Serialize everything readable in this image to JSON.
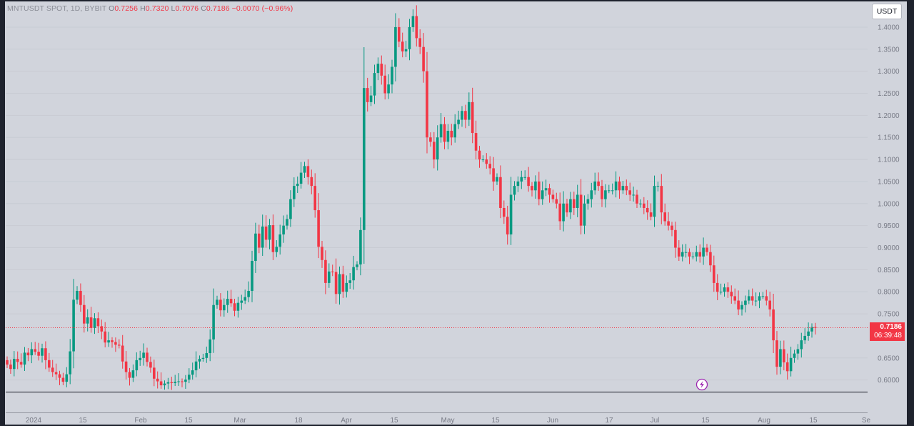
{
  "legend": {
    "symbol": "MNTUSDT SPOT, 1D, BYBIT",
    "open_label": "O",
    "open": "0.7256",
    "high_label": "H",
    "high": "0.7320",
    "low_label": "L",
    "low": "0.7076",
    "close_label": "C",
    "close": "0.7186",
    "change": "−0.0070 (−0.96%)"
  },
  "currency_button": "USDT",
  "price_tag": {
    "price": "0.7186",
    "countdown": "06:39:48"
  },
  "colors": {
    "up": "#089981",
    "down": "#f23645",
    "background": "#d1d4dc",
    "frame": "#1e222d",
    "axis_text": "#787b86"
  },
  "flash_icon": "lightning-icon",
  "chart_data": {
    "type": "candlestick",
    "title": "",
    "xlabel": "",
    "ylabel": "",
    "ylim": [
      0.58,
      1.455
    ],
    "y_ticks": [
      "1.4000",
      "1.3500",
      "1.3000",
      "1.2500",
      "1.2000",
      "1.1500",
      "1.1000",
      "1.0500",
      "1.0000",
      "0.9500",
      "0.9000",
      "0.8500",
      "0.8000",
      "0.7500",
      "0.6500",
      "0.6000"
    ],
    "x_ticks": [
      "2024",
      "15",
      "Feb",
      "15",
      "Mar",
      "18",
      "Apr",
      "15",
      "May",
      "15",
      "Jun",
      "17",
      "Jul",
      "15",
      "Aug",
      "15",
      "Se"
    ],
    "last_price": 0.7186,
    "closes": [
      0.635,
      0.625,
      0.648,
      0.641,
      0.635,
      0.662,
      0.656,
      0.67,
      0.664,
      0.655,
      0.672,
      0.645,
      0.628,
      0.618,
      0.613,
      0.605,
      0.596,
      0.613,
      0.665,
      0.782,
      0.802,
      0.77,
      0.728,
      0.742,
      0.718,
      0.74,
      0.722,
      0.71,
      0.685,
      0.69,
      0.686,
      0.68,
      0.678,
      0.642,
      0.618,
      0.605,
      0.622,
      0.645,
      0.65,
      0.662,
      0.641,
      0.628,
      0.603,
      0.597,
      0.588,
      0.592,
      0.595,
      0.593,
      0.596,
      0.597,
      0.596,
      0.601,
      0.612,
      0.622,
      0.642,
      0.648,
      0.65,
      0.661,
      0.692,
      0.77,
      0.782,
      0.758,
      0.77,
      0.784,
      0.774,
      0.757,
      0.775,
      0.78,
      0.788,
      0.802,
      0.87,
      0.932,
      0.9,
      0.948,
      0.918,
      0.951,
      0.89,
      0.902,
      0.93,
      0.95,
      0.965,
      1.01,
      1.04,
      1.045,
      1.07,
      1.085,
      1.06,
      1.04,
      0.985,
      0.902,
      0.872,
      0.82,
      0.846,
      0.845,
      0.795,
      0.84,
      0.8,
      0.82,
      0.826,
      0.856,
      0.862,
      0.94,
      1.262,
      1.23,
      1.245,
      1.296,
      1.317,
      1.29,
      1.25,
      1.27,
      1.31,
      1.4,
      1.367,
      1.345,
      1.35,
      1.4,
      1.425,
      1.375,
      1.355,
      1.3,
      1.15,
      1.14,
      1.1,
      1.15,
      1.18,
      1.14,
      1.165,
      1.15,
      1.18,
      1.19,
      1.21,
      1.19,
      1.23,
      1.16,
      1.12,
      1.1,
      1.1,
      1.09,
      1.08,
      1.05,
      1.06,
      0.99,
      0.97,
      0.93,
      1.02,
      1.04,
      1.05,
      1.06,
      1.06,
      1.04,
      1.03,
      1.05,
      1.01,
      1.03,
      1.035,
      1.02,
      1.01,
      1.0,
      0.96,
      1.0,
      0.98,
      1.01,
      0.99,
      1.02,
      0.95,
      1.0,
      1.01,
      1.03,
      1.05,
      1.04,
      1.01,
      1.03,
      1.03,
      1.03,
      1.05,
      1.03,
      1.04,
      1.03,
      1.02,
      1.02,
      1.0,
      1.0,
      0.99,
      0.98,
      0.97,
      1.04,
      1.04,
      0.98,
      0.96,
      0.95,
      0.94,
      0.9,
      0.88,
      0.89,
      0.89,
      0.88,
      0.88,
      0.89,
      0.88,
      0.9,
      0.89,
      0.86,
      0.82,
      0.8,
      0.8,
      0.81,
      0.8,
      0.79,
      0.78,
      0.76,
      0.77,
      0.78,
      0.79,
      0.78,
      0.78,
      0.79,
      0.79,
      0.78,
      0.76,
      0.69,
      0.63,
      0.67,
      0.64,
      0.62,
      0.65,
      0.66,
      0.67,
      0.69,
      0.7,
      0.71,
      0.72,
      0.7186
    ]
  }
}
